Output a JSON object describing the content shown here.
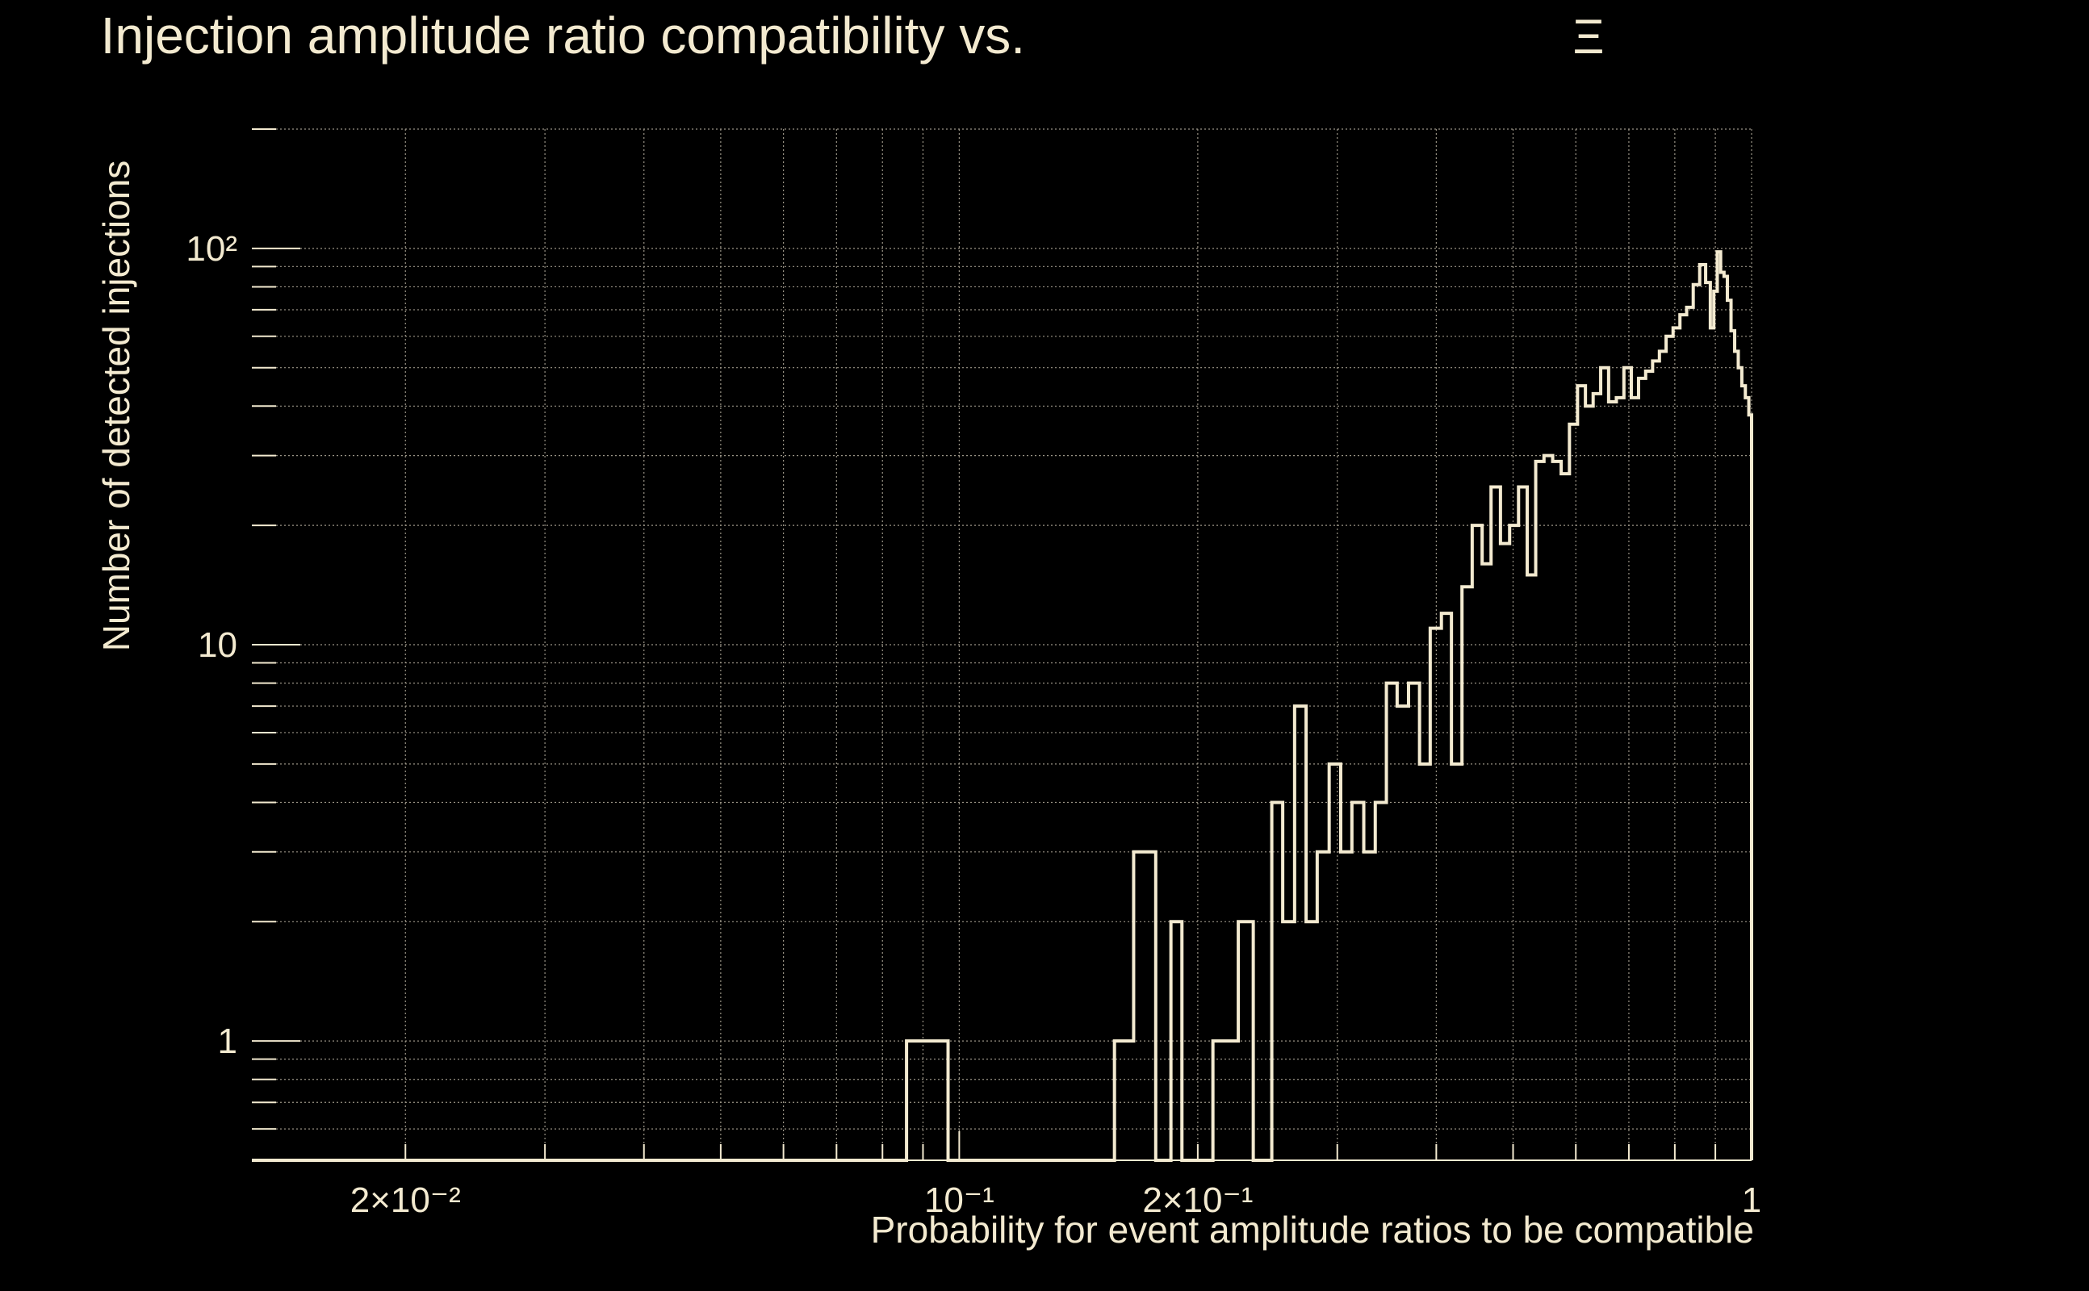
{
  "chart_data": {
    "type": "bar",
    "title": "Injection amplitude ratio compatibility vs.",
    "title_glyph": "Ξ",
    "xlabel": "Probability for event amplitude ratios to be compatible",
    "ylabel": "Number of detected injections",
    "x_scale": "log",
    "y_scale": "log",
    "xlim": [
      0.0128,
      1.0
    ],
    "ylim": [
      0.5,
      200
    ],
    "grid": true,
    "x_tick_labels": [
      {
        "value": 0.02,
        "label": "2×10⁻²"
      },
      {
        "value": 0.1,
        "label": "10⁻¹"
      },
      {
        "value": 0.2,
        "label": "2×10⁻¹"
      },
      {
        "value": 1.0,
        "label": "1"
      }
    ],
    "y_tick_labels": [
      {
        "value": 1,
        "label": "1"
      },
      {
        "value": 10,
        "label": "10"
      },
      {
        "value": 100,
        "label": "10²"
      }
    ],
    "bin_edges_x": [
      0.0128,
      0.0858,
      0.0968,
      0.157,
      0.166,
      0.177,
      0.185,
      0.191,
      0.2,
      0.209,
      0.225,
      0.235,
      0.248,
      0.256,
      0.265,
      0.274,
      0.283,
      0.293,
      0.303,
      0.313,
      0.324,
      0.335,
      0.346,
      0.357,
      0.369,
      0.381,
      0.393,
      0.406,
      0.418,
      0.431,
      0.444,
      0.457,
      0.469,
      0.482,
      0.495,
      0.508,
      0.521,
      0.534,
      0.547,
      0.561,
      0.575,
      0.589,
      0.603,
      0.617,
      0.631,
      0.645,
      0.66,
      0.675,
      0.69,
      0.705,
      0.72,
      0.735,
      0.75,
      0.765,
      0.78,
      0.796,
      0.812,
      0.828,
      0.844,
      0.86,
      0.875,
      0.887,
      0.896,
      0.905,
      0.914,
      0.923,
      0.932,
      0.942,
      0.952,
      0.962,
      0.972,
      0.982,
      0.992,
      1.0
    ],
    "counts": [
      0,
      1,
      0,
      1,
      3,
      0,
      2,
      0,
      0,
      1,
      2,
      0,
      4,
      2,
      7,
      2,
      3,
      5,
      3,
      4,
      3,
      4,
      8,
      7,
      8,
      5,
      11,
      12,
      5,
      14,
      20,
      16,
      25,
      18,
      20,
      25,
      15,
      29,
      30,
      29,
      27,
      36,
      45,
      40,
      43,
      50,
      41,
      42,
      50,
      42,
      47,
      49,
      52,
      55,
      60,
      63,
      68,
      71,
      81,
      91,
      82,
      63,
      78,
      98,
      87,
      85,
      74,
      62,
      55,
      50,
      45,
      42,
      38
    ]
  }
}
